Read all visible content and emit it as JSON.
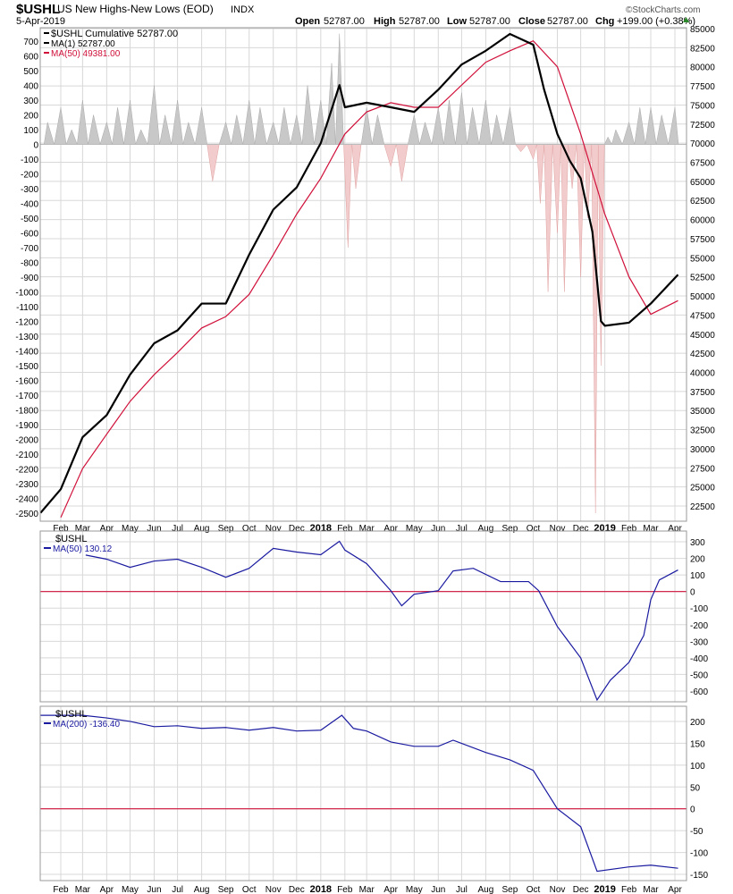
{
  "header": {
    "symbol": "$USHL",
    "name": "US New Highs-New Lows (EOD)",
    "exchange": "INDX",
    "date": "5-Apr-2019",
    "brand": "©StockCharts.com",
    "open_label": "Open",
    "open": "52787.00",
    "high_label": "High",
    "high": "52787.00",
    "low_label": "Low",
    "low": "52787.00",
    "close_label": "Close",
    "close": "52787.00",
    "chg_label": "Chg",
    "chg": "+199.00 (+0.38%)",
    "up_color": "#2a8a2a"
  },
  "chart_data": [
    {
      "type": "line",
      "panel": "main",
      "legend": [
        "$USHL Cumulative 52787.00",
        "MA(1) 52787.00",
        "MA(50) 49381.00"
      ],
      "left_axis": {
        "ylim": [
          -2500,
          700
        ],
        "ticks": [
          700,
          600,
          500,
          400,
          300,
          200,
          100,
          0,
          -100,
          -200,
          -300,
          -400,
          -500,
          -600,
          -700,
          -800,
          -900,
          -1000,
          -1100,
          -1200,
          -1300,
          -1400,
          -1500,
          -1600,
          -1700,
          -1800,
          -1900,
          -2000,
          -2100,
          -2200,
          -2300,
          -2400,
          -2500
        ]
      },
      "right_axis": {
        "ylim": [
          22500,
          85000
        ],
        "ticks": [
          85000,
          82500,
          80000,
          77500,
          75000,
          72500,
          70000,
          67500,
          65000,
          62500,
          60000,
          57500,
          55000,
          52500,
          50000,
          47500,
          45000,
          42500,
          40000,
          37500,
          35000,
          32500,
          30000,
          27500,
          25000,
          22500
        ]
      },
      "x_ticks": [
        "Feb",
        "Mar",
        "Apr",
        "May",
        "Jun",
        "Jul",
        "Aug",
        "Sep",
        "Oct",
        "Nov",
        "Dec",
        "2018",
        "Feb",
        "Mar",
        "Apr",
        "May",
        "Jun",
        "Jul",
        "Aug",
        "Sep",
        "Oct",
        "Nov",
        "Dec",
        "2019",
        "Feb",
        "Mar",
        "Apr"
      ],
      "histogram": {
        "axis": "left",
        "pos_color": "#c8c8c8",
        "neg_color": "#f2cccc",
        "points": [
          [
            "2017-01-15",
            150
          ],
          [
            "2017-02-01",
            250
          ],
          [
            "2017-02-15",
            100
          ],
          [
            "2017-03-01",
            300
          ],
          [
            "2017-03-15",
            200
          ],
          [
            "2017-04-01",
            150
          ],
          [
            "2017-04-15",
            250
          ],
          [
            "2017-05-01",
            300
          ],
          [
            "2017-05-15",
            100
          ],
          [
            "2017-06-01",
            400
          ],
          [
            "2017-06-15",
            200
          ],
          [
            "2017-07-01",
            300
          ],
          [
            "2017-07-15",
            150
          ],
          [
            "2017-08-01",
            250
          ],
          [
            "2017-08-15",
            -250
          ],
          [
            "2017-09-01",
            150
          ],
          [
            "2017-09-15",
            200
          ],
          [
            "2017-10-01",
            300
          ],
          [
            "2017-10-15",
            250
          ],
          [
            "2017-11-01",
            150
          ],
          [
            "2017-11-15",
            250
          ],
          [
            "2017-12-01",
            200
          ],
          [
            "2017-12-15",
            400
          ],
          [
            "2018-01-01",
            300
          ],
          [
            "2018-01-15",
            550
          ],
          [
            "2018-01-25",
            750
          ],
          [
            "2018-02-05",
            -700
          ],
          [
            "2018-02-15",
            -300
          ],
          [
            "2018-03-01",
            250
          ],
          [
            "2018-03-15",
            200
          ],
          [
            "2018-04-01",
            -150
          ],
          [
            "2018-04-15",
            -250
          ],
          [
            "2018-05-01",
            200
          ],
          [
            "2018-05-15",
            150
          ],
          [
            "2018-06-01",
            250
          ],
          [
            "2018-06-15",
            300
          ],
          [
            "2018-07-01",
            350
          ],
          [
            "2018-07-15",
            250
          ],
          [
            "2018-08-01",
            300
          ],
          [
            "2018-08-15",
            200
          ],
          [
            "2018-09-01",
            250
          ],
          [
            "2018-09-15",
            -50
          ],
          [
            "2018-10-01",
            -100
          ],
          [
            "2018-10-10",
            -400
          ],
          [
            "2018-10-20",
            -1000
          ],
          [
            "2018-11-01",
            -600
          ],
          [
            "2018-11-10",
            -1000
          ],
          [
            "2018-11-20",
            -300
          ],
          [
            "2018-12-01",
            -900
          ],
          [
            "2018-12-10",
            -500
          ],
          [
            "2018-12-20",
            -2500
          ],
          [
            "2018-12-27",
            -1500
          ],
          [
            "2019-01-05",
            50
          ],
          [
            "2019-01-15",
            100
          ],
          [
            "2019-02-01",
            150
          ],
          [
            "2019-02-15",
            250
          ],
          [
            "2019-03-01",
            250
          ],
          [
            "2019-03-15",
            200
          ],
          [
            "2019-04-01",
            250
          ]
        ]
      },
      "series": [
        {
          "name": "$USHL Cumulative",
          "axis": "right",
          "color": "#000000",
          "values": [
            [
              "2017-01-06",
              21600
            ],
            [
              "2017-02-01",
              24700
            ],
            [
              "2017-03-01",
              31500
            ],
            [
              "2017-04-01",
              34400
            ],
            [
              "2017-05-01",
              39700
            ],
            [
              "2017-06-01",
              43800
            ],
            [
              "2017-07-01",
              45500
            ],
            [
              "2017-08-01",
              49000
            ],
            [
              "2017-09-01",
              49000
            ],
            [
              "2017-10-01",
              55400
            ],
            [
              "2017-11-01",
              61300
            ],
            [
              "2017-12-01",
              64200
            ],
            [
              "2018-01-01",
              70000
            ],
            [
              "2018-01-25",
              77600
            ],
            [
              "2018-02-01",
              74700
            ],
            [
              "2018-03-01",
              75300
            ],
            [
              "2018-04-01",
              74700
            ],
            [
              "2018-05-01",
              74100
            ],
            [
              "2018-06-01",
              77000
            ],
            [
              "2018-07-01",
              80300
            ],
            [
              "2018-08-01",
              82100
            ],
            [
              "2018-09-01",
              84300
            ],
            [
              "2018-10-01",
              82900
            ],
            [
              "2018-10-15",
              77000
            ],
            [
              "2018-11-01",
              71200
            ],
            [
              "2018-11-17",
              67700
            ],
            [
              "2018-12-01",
              65400
            ],
            [
              "2018-12-16",
              58400
            ],
            [
              "2018-12-27",
              46700
            ],
            [
              "2019-01-01",
              46100
            ],
            [
              "2019-02-01",
              46500
            ],
            [
              "2019-03-01",
              49000
            ],
            [
              "2019-04-05",
              52787
            ]
          ]
        },
        {
          "name": "MA(50)",
          "axis": "right",
          "color": "#d0103a",
          "values": [
            [
              "2017-02-01",
              21000
            ],
            [
              "2017-03-01",
              27400
            ],
            [
              "2017-04-01",
              31900
            ],
            [
              "2017-05-01",
              36200
            ],
            [
              "2017-06-01",
              39700
            ],
            [
              "2017-07-01",
              42600
            ],
            [
              "2017-08-01",
              45800
            ],
            [
              "2017-09-01",
              47300
            ],
            [
              "2017-10-01",
              50200
            ],
            [
              "2017-11-01",
              55400
            ],
            [
              "2017-12-01",
              60700
            ],
            [
              "2018-01-01",
              65400
            ],
            [
              "2018-02-01",
              71200
            ],
            [
              "2018-03-01",
              74100
            ],
            [
              "2018-04-01",
              75300
            ],
            [
              "2018-05-01",
              74700
            ],
            [
              "2018-06-01",
              74700
            ],
            [
              "2018-07-01",
              77600
            ],
            [
              "2018-08-01",
              80600
            ],
            [
              "2018-09-01",
              82100
            ],
            [
              "2018-10-01",
              83400
            ],
            [
              "2018-11-01",
              80000
            ],
            [
              "2018-12-01",
              71200
            ],
            [
              "2019-01-01",
              60700
            ],
            [
              "2019-02-01",
              52500
            ],
            [
              "2019-03-01",
              47600
            ],
            [
              "2019-04-05",
              49381
            ]
          ]
        }
      ]
    },
    {
      "type": "line",
      "panel": "ma50",
      "legend": [
        "$USHL",
        "MA(50) 130.12"
      ],
      "ylim": [
        -650,
        330
      ],
      "ticks": [
        300,
        200,
        100,
        0,
        -100,
        -200,
        -300,
        -400,
        -500,
        -600
      ],
      "zero_line_color": "#d0103a",
      "series": [
        {
          "name": "MA(50)",
          "color": "#1a1aa0",
          "values": [
            [
              "2017-03-05",
              220
            ],
            [
              "2017-04-01",
              195
            ],
            [
              "2017-05-01",
              146
            ],
            [
              "2017-06-01",
              184
            ],
            [
              "2017-07-01",
              195
            ],
            [
              "2017-08-01",
              146
            ],
            [
              "2017-09-01",
              86
            ],
            [
              "2017-10-01",
              140
            ],
            [
              "2017-11-01",
              260
            ],
            [
              "2017-12-01",
              238
            ],
            [
              "2018-01-01",
              222
            ],
            [
              "2018-01-25",
              303
            ],
            [
              "2018-02-01",
              250
            ],
            [
              "2018-03-01",
              168
            ],
            [
              "2018-04-01",
              5
            ],
            [
              "2018-04-15",
              -86
            ],
            [
              "2018-05-01",
              -16
            ],
            [
              "2018-06-01",
              5
            ],
            [
              "2018-06-20",
              124
            ],
            [
              "2018-07-16",
              140
            ],
            [
              "2018-08-20",
              60
            ],
            [
              "2018-09-25",
              60
            ],
            [
              "2018-10-08",
              5
            ],
            [
              "2018-11-01",
              -211
            ],
            [
              "2018-12-01",
              -400
            ],
            [
              "2018-12-22",
              -654
            ],
            [
              "2019-01-08",
              -535
            ],
            [
              "2019-02-01",
              -427
            ],
            [
              "2019-02-20",
              -265
            ],
            [
              "2019-03-01",
              -49
            ],
            [
              "2019-03-12",
              70
            ],
            [
              "2019-04-05",
              130
            ]
          ]
        }
      ]
    },
    {
      "type": "line",
      "panel": "ma200",
      "legend": [
        "$USHL",
        "MA(200) -136.40"
      ],
      "ylim": [
        -165,
        245
      ],
      "ticks": [
        200,
        150,
        100,
        50,
        0,
        -50,
        -100,
        -150
      ],
      "zero_line_color": "#d0103a",
      "series": [
        {
          "name": "MA(200)",
          "color": "#1a1aa0",
          "values": [
            [
              "2017-01-06",
              214
            ],
            [
              "2017-03-01",
              214
            ],
            [
              "2017-04-01",
              208
            ],
            [
              "2017-05-01",
              200
            ],
            [
              "2017-06-01",
              188
            ],
            [
              "2017-07-01",
              190
            ],
            [
              "2017-08-01",
              184
            ],
            [
              "2017-09-01",
              186
            ],
            [
              "2017-10-01",
              180
            ],
            [
              "2017-11-01",
              186
            ],
            [
              "2017-12-01",
              178
            ],
            [
              "2018-01-01",
              180
            ],
            [
              "2018-01-28",
              214
            ],
            [
              "2018-02-12",
              184
            ],
            [
              "2018-03-01",
              178
            ],
            [
              "2018-04-01",
              153
            ],
            [
              "2018-05-01",
              143
            ],
            [
              "2018-06-01",
              143
            ],
            [
              "2018-06-20",
              157
            ],
            [
              "2018-08-01",
              129
            ],
            [
              "2018-09-01",
              112
            ],
            [
              "2018-10-01",
              88
            ],
            [
              "2018-11-01",
              0
            ],
            [
              "2018-12-01",
              -41
            ],
            [
              "2018-12-22",
              -143
            ],
            [
              "2019-02-01",
              -133
            ],
            [
              "2019-03-01",
              -129
            ],
            [
              "2019-04-05",
              -136
            ]
          ]
        }
      ]
    }
  ]
}
